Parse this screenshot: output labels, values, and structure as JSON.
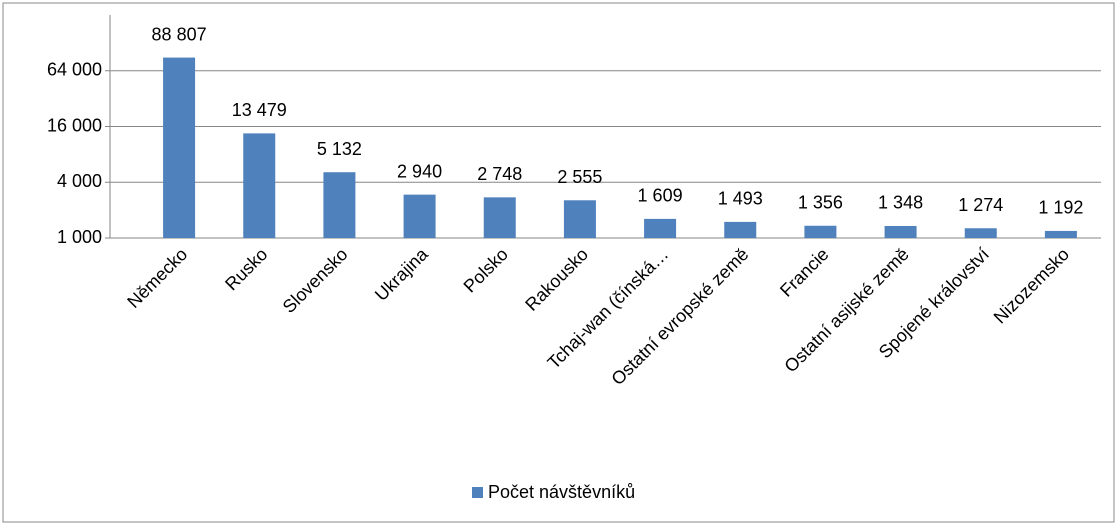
{
  "chart_data": {
    "type": "bar",
    "categories": [
      "Německo",
      "Rusko",
      "Slovensko",
      "Ukrajina",
      "Polsko",
      "Rakousko",
      "Tchaj-wan (čínská…",
      "Ostatní evropské země",
      "Francie",
      "Ostatní asijské země",
      "Spojené království",
      "Nizozemsko"
    ],
    "series": [
      {
        "name": "Počet návštěvníků",
        "color": "#4f81bd",
        "values": [
          88807,
          13479,
          5132,
          2940,
          2748,
          2555,
          1609,
          1493,
          1356,
          1348,
          1274,
          1192
        ],
        "value_labels": [
          "88 807",
          "13 479",
          "5 132",
          "2 940",
          "2 748",
          "2 555",
          "1 609",
          "1 493",
          "1 356",
          "1 348",
          "1 274",
          "1 192"
        ]
      }
    ],
    "ylim": [
      1000,
      256000
    ],
    "log_scale": true,
    "yticks": [
      {
        "value": 1000,
        "label": "1 000"
      },
      {
        "value": 4000,
        "label": "4 000"
      },
      {
        "value": 16000,
        "label": "16 000"
      },
      {
        "value": 64000,
        "label": "64 000"
      }
    ],
    "grid": true,
    "legend": "bottom"
  }
}
